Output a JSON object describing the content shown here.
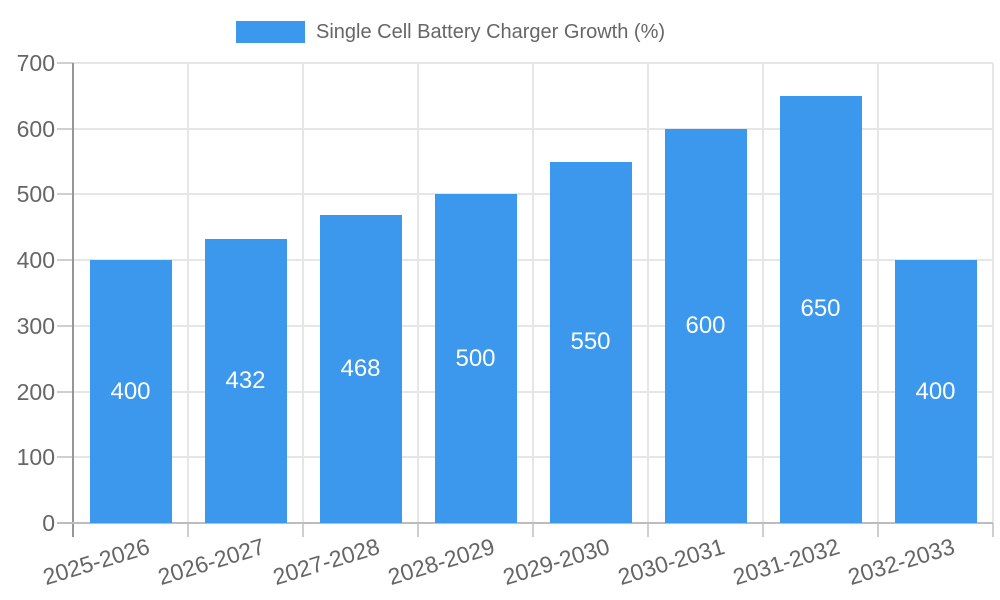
{
  "chart_data": {
    "type": "bar",
    "title": "Single Cell Battery Charger Growth (%)",
    "categories": [
      "2025-2026",
      "2026-2027",
      "2027-2028",
      "2028-2029",
      "2029-2030",
      "2030-2031",
      "2031-2032",
      "2032-2033"
    ],
    "values": [
      400,
      432,
      468,
      500,
      550,
      600,
      650,
      400
    ],
    "bar_value_labels": [
      "400",
      "432",
      "468",
      "500",
      "550",
      "600",
      "650",
      "400"
    ],
    "xlabel": "",
    "ylabel": "",
    "ylim": [
      0,
      700
    ],
    "yticks": [
      0,
      100,
      200,
      300,
      400,
      500,
      600,
      700
    ],
    "grid": true,
    "legend_position": "top",
    "colors": {
      "bar": "#3b98ec",
      "bar_label_text": "#ffffff",
      "axis_text": "#666666",
      "grid_line": "#e6e6e6",
      "outer_tick": "#cfcfcf",
      "y_axis_line": "#969696",
      "x_axis_line": "#bdbdbd",
      "background": "#ffffff"
    }
  }
}
